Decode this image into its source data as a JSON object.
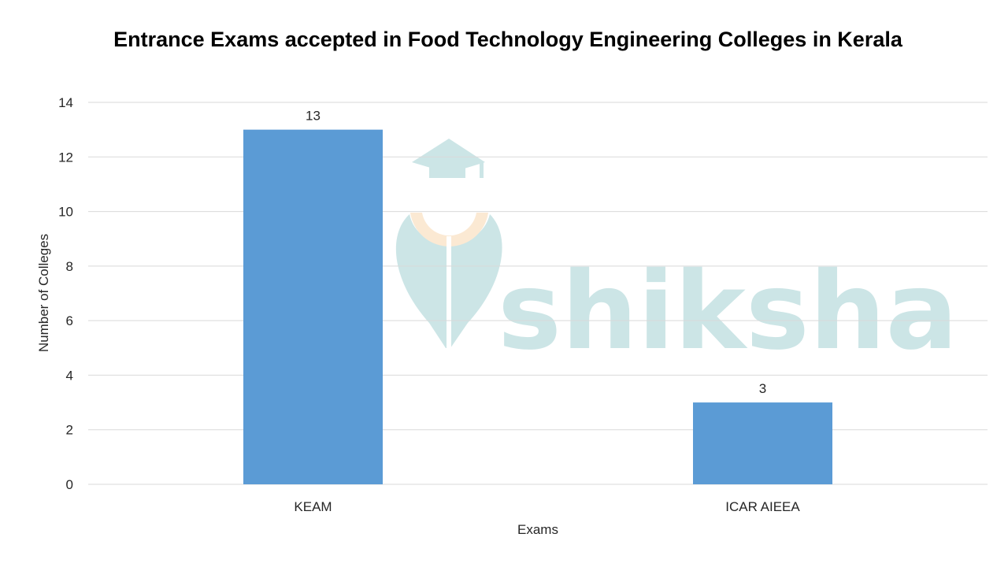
{
  "chart_data": {
    "type": "bar",
    "title": "Entrance Exams accepted in Food Technology Engineering Colleges in Kerala",
    "xlabel": "Exams",
    "ylabel": "Number of Colleges",
    "categories": [
      "KEAM",
      "ICAR AIEEA"
    ],
    "values": [
      13,
      3
    ],
    "data_labels": [
      "13",
      "3"
    ],
    "ylim": [
      0,
      14
    ],
    "yticks": [
      "0",
      "2",
      "4",
      "6",
      "8",
      "10",
      "12",
      "14"
    ],
    "grid": true,
    "legend": "none",
    "bar_color": "#5b9bd5",
    "gridline_color": "#d9d9d9"
  },
  "watermark": {
    "text": "shiksha",
    "color": "#cce5e6",
    "accent_color": "#fbe9d3",
    "icon": "graduation-cap-icon"
  }
}
